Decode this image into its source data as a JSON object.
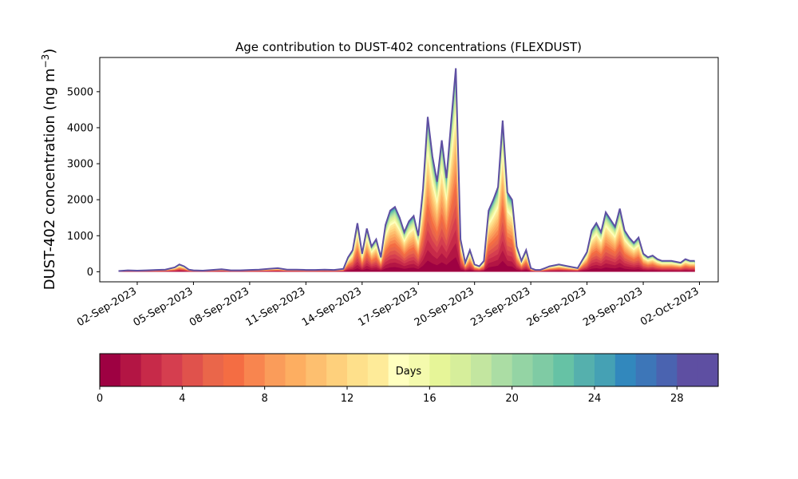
{
  "chart_data": {
    "type": "area",
    "title": "Age contribution to DUST-402 concentrations (FLEXDUST)",
    "ylabel": "DUST-402 concentration (ng m",
    "ylabel_sup": "−3",
    "ylabel_close": ")",
    "xlabel": "",
    "ylim": [
      -280,
      5950
    ],
    "xlim": [
      "2023-08-31",
      "2023-10-03"
    ],
    "yticks": [
      0,
      1000,
      2000,
      3000,
      4000,
      5000
    ],
    "xticks": [
      {
        "date": "2023-09-02",
        "label": "02-Sep-2023"
      },
      {
        "date": "2023-09-05",
        "label": "05-Sep-2023"
      },
      {
        "date": "2023-09-08",
        "label": "08-Sep-2023"
      },
      {
        "date": "2023-09-11",
        "label": "11-Sep-2023"
      },
      {
        "date": "2023-09-14",
        "label": "14-Sep-2023"
      },
      {
        "date": "2023-09-17",
        "label": "17-Sep-2023"
      },
      {
        "date": "2023-09-20",
        "label": "20-Sep-2023"
      },
      {
        "date": "2023-09-23",
        "label": "23-Sep-2023"
      },
      {
        "date": "2023-09-26",
        "label": "26-Sep-2023"
      },
      {
        "date": "2023-09-29",
        "label": "29-Sep-2023"
      },
      {
        "date": "2023-10-02",
        "label": "02-Oct-2023"
      }
    ],
    "total_series": {
      "x": [
        "2023-09-01T00:00",
        "2023-09-01T12:00",
        "2023-09-02T00:00",
        "2023-09-02T12:00",
        "2023-09-03T00:00",
        "2023-09-03T12:00",
        "2023-09-04T00:00",
        "2023-09-04T06:00",
        "2023-09-04T12:00",
        "2023-09-04T18:00",
        "2023-09-05T00:00",
        "2023-09-05T12:00",
        "2023-09-06T00:00",
        "2023-09-06T12:00",
        "2023-09-07T00:00",
        "2023-09-07T12:00",
        "2023-09-08T00:00",
        "2023-09-08T12:00",
        "2023-09-09T00:00",
        "2023-09-09T12:00",
        "2023-09-10T00:00",
        "2023-09-10T12:00",
        "2023-09-11T00:00",
        "2023-09-11T12:00",
        "2023-09-12T00:00",
        "2023-09-12T12:00",
        "2023-09-13T00:00",
        "2023-09-13T06:00",
        "2023-09-13T12:00",
        "2023-09-13T18:00",
        "2023-09-14T00:00",
        "2023-09-14T06:00",
        "2023-09-14T12:00",
        "2023-09-14T18:00",
        "2023-09-15T00:00",
        "2023-09-15T06:00",
        "2023-09-15T12:00",
        "2023-09-15T18:00",
        "2023-09-16T00:00",
        "2023-09-16T06:00",
        "2023-09-16T12:00",
        "2023-09-16T18:00",
        "2023-09-17T00:00",
        "2023-09-17T06:00",
        "2023-09-17T12:00",
        "2023-09-17T18:00",
        "2023-09-18T00:00",
        "2023-09-18T06:00",
        "2023-09-18T12:00",
        "2023-09-18T18:00",
        "2023-09-19T00:00",
        "2023-09-19T06:00",
        "2023-09-19T12:00",
        "2023-09-19T18:00",
        "2023-09-20T00:00",
        "2023-09-20T06:00",
        "2023-09-20T12:00",
        "2023-09-20T18:00",
        "2023-09-21T00:00",
        "2023-09-21T06:00",
        "2023-09-21T12:00",
        "2023-09-21T18:00",
        "2023-09-22T00:00",
        "2023-09-22T06:00",
        "2023-09-22T12:00",
        "2023-09-22T18:00",
        "2023-09-23T00:00",
        "2023-09-23T06:00",
        "2023-09-23T12:00",
        "2023-09-23T18:00",
        "2023-09-24T00:00",
        "2023-09-24T12:00",
        "2023-09-25T00:00",
        "2023-09-25T12:00",
        "2023-09-26T00:00",
        "2023-09-26T06:00",
        "2023-09-26T12:00",
        "2023-09-26T18:00",
        "2023-09-27T00:00",
        "2023-09-27T06:00",
        "2023-09-27T12:00",
        "2023-09-27T18:00",
        "2023-09-28T00:00",
        "2023-09-28T06:00",
        "2023-09-28T12:00",
        "2023-09-28T18:00",
        "2023-09-29T00:00",
        "2023-09-29T06:00",
        "2023-09-29T12:00",
        "2023-09-29T18:00",
        "2023-09-30T00:00",
        "2023-09-30T12:00",
        "2023-10-01T00:00",
        "2023-10-01T06:00",
        "2023-10-01T12:00",
        "2023-10-01T18:00"
      ],
      "values": [
        20,
        40,
        30,
        40,
        50,
        60,
        120,
        200,
        150,
        60,
        40,
        30,
        50,
        70,
        40,
        40,
        50,
        60,
        80,
        100,
        60,
        60,
        50,
        50,
        60,
        50,
        80,
        400,
        600,
        1350,
        500,
        1200,
        700,
        900,
        400,
        1300,
        1700,
        1800,
        1500,
        1100,
        1400,
        1550,
        1000,
        2300,
        4300,
        3200,
        2500,
        3650,
        2600,
        4150,
        5650,
        900,
        250,
        600,
        200,
        150,
        300,
        1700,
        2000,
        2350,
        4200,
        2200,
        2000,
        700,
        300,
        600,
        100,
        50,
        50,
        100,
        150,
        200,
        150,
        100,
        550,
        1150,
        1350,
        1100,
        1650,
        1450,
        1250,
        1750,
        1150,
        950,
        800,
        950,
        500,
        400,
        450,
        350,
        300,
        300,
        250,
        350,
        300,
        300
      ]
    },
    "colorbar": {
      "label": "Days",
      "min": 0,
      "max": 30,
      "ticks": [
        0,
        4,
        8,
        12,
        16,
        20,
        24,
        28
      ],
      "colors": [
        "#9e0142",
        "#b31544",
        "#c72a49",
        "#d53e4f",
        "#e0524c",
        "#ea664a",
        "#f46d43",
        "#f8854f",
        "#fa9c5a",
        "#fdae61",
        "#fdbf6f",
        "#fed07c",
        "#fee08b",
        "#feeb99",
        "#ffffbf",
        "#f4faad",
        "#e6f598",
        "#d6ee9b",
        "#c3e6a0",
        "#abdda4",
        "#94d4a4",
        "#7fcba4",
        "#66c2a5",
        "#55b0ad",
        "#45a1b4",
        "#3288bd",
        "#3d76b8",
        "#4a63b0",
        "#5e4fa2",
        "#5e4fa2"
      ]
    }
  }
}
